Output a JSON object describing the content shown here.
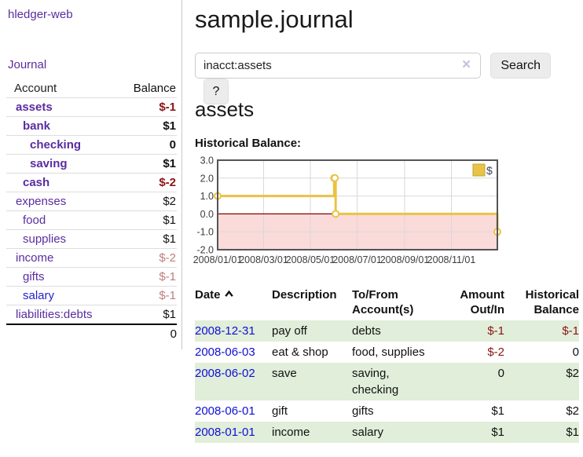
{
  "app": {
    "brand": "hledger-web",
    "nav": {
      "journal": "Journal"
    }
  },
  "sidebar": {
    "header": {
      "account": "Account",
      "balance": "Balance"
    },
    "accounts": [
      {
        "name": "assets",
        "balance": "$-1"
      },
      {
        "name": "bank",
        "balance": "$1"
      },
      {
        "name": "checking",
        "balance": "0"
      },
      {
        "name": "saving",
        "balance": "$1"
      },
      {
        "name": "cash",
        "balance": "$-2"
      },
      {
        "name": "expenses",
        "balance": "$2"
      },
      {
        "name": "food",
        "balance": "$1"
      },
      {
        "name": "supplies",
        "balance": "$1"
      },
      {
        "name": "income",
        "balance": "$-2"
      },
      {
        "name": "gifts",
        "balance": "$-1"
      },
      {
        "name": "salary",
        "balance": "$-1"
      },
      {
        "name": "liabilities:debts",
        "balance": "$1"
      }
    ],
    "total": "0"
  },
  "header": {
    "title": "sample.journal"
  },
  "search": {
    "value": "inacct:assets",
    "clear_label": "×",
    "button_label": "Search",
    "help_label": "?"
  },
  "account_page": {
    "title": "assets",
    "chart_label": "Historical Balance:"
  },
  "chart_data": {
    "type": "line",
    "style": "step",
    "title": "Historical Balance",
    "legend": "$",
    "legend_position": "top-right",
    "grid": true,
    "series": [
      {
        "name": "$",
        "color": "#e9c345",
        "points": [
          [
            "2008-01-01",
            1
          ],
          [
            "2008-06-01",
            2
          ],
          [
            "2008-06-02",
            2
          ],
          [
            "2008-06-03",
            0
          ],
          [
            "2008-12-31",
            -1
          ]
        ]
      }
    ],
    "xrange": [
      "2008-01-01",
      "2008-12-31"
    ],
    "ylim": [
      -2,
      3
    ],
    "yticks": [
      "3.0",
      "2.0",
      "1.0",
      "0.0",
      "-1.0",
      "-2.0"
    ],
    "xticks": [
      "2008/01/01",
      "2008/03/01",
      "2008/05/01",
      "2008/07/01",
      "2008/09/01",
      "2008/11/01"
    ],
    "negative_region_color": "#fbdada",
    "zero_line_color": "#8c0000",
    "grid_color": "#d9d9d9",
    "border_color": "#545454"
  },
  "register": {
    "columns": {
      "date": "Date",
      "description": "Description",
      "accounts": "To/From Account(s)",
      "amount": "Amount Out/In",
      "balance": "Historical Balance"
    },
    "rows": [
      {
        "date": "2008-12-31",
        "description": "pay off",
        "accounts": "debts",
        "amount": "$-1",
        "balance": "$-1"
      },
      {
        "date": "2008-06-03",
        "description": "eat & shop",
        "accounts": "food, supplies",
        "amount": "$-2",
        "balance": "0"
      },
      {
        "date": "2008-06-02",
        "description": "save",
        "accounts": "saving, checking",
        "amount": "0",
        "balance": "$2"
      },
      {
        "date": "2008-06-01",
        "description": "gift",
        "accounts": "gifts",
        "amount": "$1",
        "balance": "$2"
      },
      {
        "date": "2008-01-01",
        "description": "income",
        "accounts": "salary",
        "amount": "$1",
        "balance": "$1"
      }
    ]
  }
}
